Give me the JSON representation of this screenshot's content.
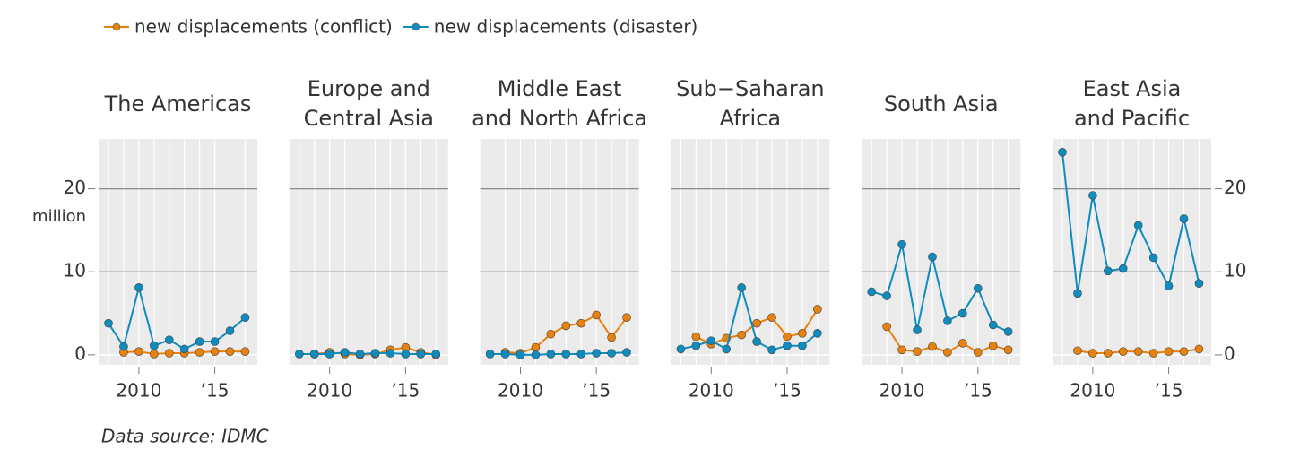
{
  "legend_position": "top-left",
  "source": "Data source: IDMC",
  "chart_data": [
    {
      "type": "line",
      "title": [
        "The Americas"
      ],
      "ylabel": "million",
      "ytick_labels": "left",
      "x": [
        2008,
        2009,
        2010,
        2011,
        2012,
        2013,
        2014,
        2015,
        2016,
        2017
      ],
      "series": [
        {
          "name": "new displacements (conflict)",
          "color": "#e8820c",
          "values": [
            null,
            0.3,
            0.4,
            0.1,
            0.2,
            0.2,
            0.3,
            0.4,
            0.4,
            0.4
          ]
        },
        {
          "name": "new displacements (disaster)",
          "color": "#0f8cbf",
          "values": [
            3.8,
            1.0,
            8.1,
            1.1,
            1.8,
            0.7,
            1.6,
            1.6,
            2.9,
            4.5
          ]
        }
      ],
      "xlim": [
        2007.35,
        2017.8
      ],
      "ylim": [
        -1.2,
        26
      ],
      "xticks": [
        2010,
        {
          "value": 2015,
          "label": "’15"
        }
      ],
      "yticks": [
        0,
        10,
        20
      ],
      "grid": true
    },
    {
      "type": "line",
      "title": [
        "Europe and",
        "Central Asia"
      ],
      "x": [
        2008,
        2009,
        2010,
        2011,
        2012,
        2013,
        2014,
        2015,
        2016,
        2017
      ],
      "series": [
        {
          "name": "new displacements (conflict)",
          "color": "#e8820c",
          "values": [
            null,
            0.1,
            0.3,
            0.1,
            0.0,
            0.1,
            0.6,
            0.9,
            0.3,
            0.0
          ]
        },
        {
          "name": "new displacements (disaster)",
          "color": "#0f8cbf",
          "values": [
            0.1,
            0.1,
            0.1,
            0.3,
            0.1,
            0.2,
            0.2,
            0.1,
            0.1,
            0.1
          ]
        }
      ],
      "xlim": [
        2007.35,
        2017.8
      ],
      "ylim": [
        -1.2,
        26
      ],
      "xticks": [
        2010,
        {
          "value": 2015,
          "label": "’15"
        }
      ],
      "yticks": [
        0,
        10,
        20
      ],
      "grid": true
    },
    {
      "type": "line",
      "title": [
        "Middle East",
        "and North Africa"
      ],
      "x": [
        2008,
        2009,
        2010,
        2011,
        2012,
        2013,
        2014,
        2015,
        2016,
        2017
      ],
      "series": [
        {
          "name": "new displacements (conflict)",
          "color": "#e8820c",
          "values": [
            null,
            0.3,
            0.2,
            0.9,
            2.5,
            3.5,
            3.8,
            4.8,
            2.1,
            4.5
          ]
        },
        {
          "name": "new displacements (disaster)",
          "color": "#0f8cbf",
          "values": [
            0.1,
            0.1,
            0.0,
            0.0,
            0.1,
            0.1,
            0.1,
            0.2,
            0.2,
            0.3
          ]
        }
      ],
      "xlim": [
        2007.35,
        2017.8
      ],
      "ylim": [
        -1.2,
        26
      ],
      "xticks": [
        2010,
        {
          "value": 2015,
          "label": "’15"
        }
      ],
      "yticks": [
        0,
        10,
        20
      ],
      "grid": true
    },
    {
      "type": "line",
      "title": [
        "Sub−Saharan",
        "Africa"
      ],
      "x": [
        2008,
        2009,
        2010,
        2011,
        2012,
        2013,
        2014,
        2015,
        2016,
        2017
      ],
      "series": [
        {
          "name": "new displacements (conflict)",
          "color": "#e8820c",
          "values": [
            null,
            2.2,
            1.3,
            2.0,
            2.4,
            3.8,
            4.5,
            2.2,
            2.6,
            5.5
          ]
        },
        {
          "name": "new displacements (disaster)",
          "color": "#0f8cbf",
          "values": [
            0.7,
            1.1,
            1.7,
            0.7,
            8.1,
            1.6,
            0.6,
            1.1,
            1.1,
            2.6
          ]
        }
      ],
      "xlim": [
        2007.35,
        2017.8
      ],
      "ylim": [
        -1.2,
        26
      ],
      "xticks": [
        2010,
        {
          "value": 2015,
          "label": "’15"
        }
      ],
      "yticks": [
        0,
        10,
        20
      ],
      "grid": true
    },
    {
      "type": "line",
      "title": [
        "South Asia"
      ],
      "x": [
        2008,
        2009,
        2010,
        2011,
        2012,
        2013,
        2014,
        2015,
        2016,
        2017
      ],
      "series": [
        {
          "name": "new displacements (conflict)",
          "color": "#e8820c",
          "values": [
            null,
            3.4,
            0.6,
            0.4,
            1.0,
            0.3,
            1.4,
            0.3,
            1.1,
            0.6
          ]
        },
        {
          "name": "new displacements (disaster)",
          "color": "#0f8cbf",
          "values": [
            7.6,
            7.1,
            13.3,
            3.0,
            11.8,
            4.1,
            5.0,
            8.0,
            3.6,
            2.8
          ]
        }
      ],
      "xlim": [
        2007.35,
        2017.8
      ],
      "ylim": [
        -1.2,
        26
      ],
      "xticks": [
        2010,
        {
          "value": 2015,
          "label": "’15"
        }
      ],
      "yticks": [
        0,
        10,
        20
      ],
      "grid": true
    },
    {
      "type": "line",
      "title": [
        "East Asia",
        "and Pacific"
      ],
      "ytick_labels": "right",
      "x": [
        2008,
        2009,
        2010,
        2011,
        2012,
        2013,
        2014,
        2015,
        2016,
        2017
      ],
      "series": [
        {
          "name": "new displacements (conflict)",
          "color": "#e8820c",
          "values": [
            null,
            0.5,
            0.2,
            0.2,
            0.4,
            0.4,
            0.2,
            0.4,
            0.4,
            0.7
          ]
        },
        {
          "name": "new displacements (disaster)",
          "color": "#0f8cbf",
          "values": [
            24.4,
            7.4,
            19.2,
            10.1,
            10.4,
            15.6,
            11.7,
            8.3,
            16.4,
            8.6
          ]
        }
      ],
      "xlim": [
        2007.35,
        2017.8
      ],
      "ylim": [
        -1.2,
        26
      ],
      "xticks": [
        2010,
        {
          "value": 2015,
          "label": "’15"
        }
      ],
      "yticks": [
        0,
        10,
        20
      ],
      "grid": true
    }
  ]
}
